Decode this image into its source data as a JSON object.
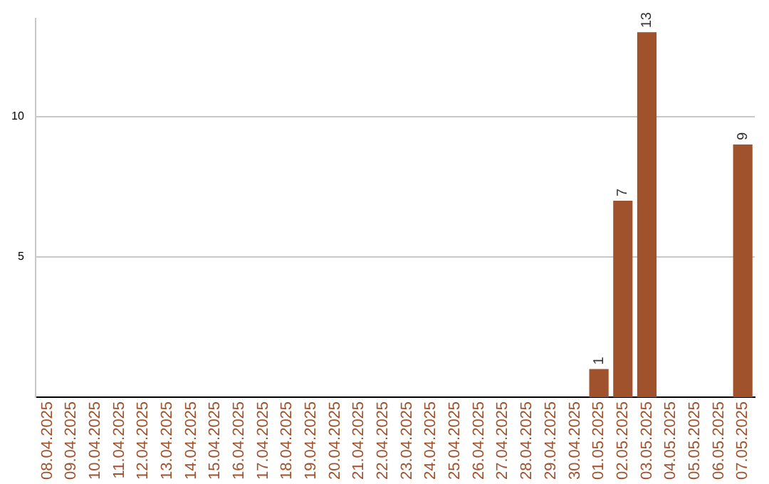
{
  "chart_data": {
    "type": "bar",
    "categories": [
      "08.04.2025",
      "09.04.2025",
      "10.04.2025",
      "11.04.2025",
      "12.04.2025",
      "13.04.2025",
      "14.04.2025",
      "15.04.2025",
      "16.04.2025",
      "17.04.2025",
      "18.04.2025",
      "19.04.2025",
      "20.04.2025",
      "21.04.2025",
      "22.04.2025",
      "23.04.2025",
      "24.04.2025",
      "25.04.2025",
      "26.04.2025",
      "27.04.2025",
      "28.04.2025",
      "29.04.2025",
      "30.04.2025",
      "01.05.2025",
      "02.05.2025",
      "03.05.2025",
      "04.05.2025",
      "05.05.2025",
      "06.05.2025",
      "07.05.2025"
    ],
    "values": [
      0,
      0,
      0,
      0,
      0,
      0,
      0,
      0,
      0,
      0,
      0,
      0,
      0,
      0,
      0,
      0,
      0,
      0,
      0,
      0,
      0,
      0,
      0,
      1,
      7,
      13,
      0,
      0,
      0,
      9
    ],
    "value_labels": [
      null,
      null,
      null,
      null,
      null,
      null,
      null,
      null,
      null,
      null,
      null,
      null,
      null,
      null,
      null,
      null,
      null,
      null,
      null,
      null,
      null,
      null,
      null,
      "1",
      "7",
      "13",
      null,
      null,
      null,
      "9"
    ],
    "color": "#a0522d",
    "ylim": [
      0,
      13.5
    ],
    "yticks": [
      5,
      10
    ],
    "grid": "y",
    "legend": false
  }
}
